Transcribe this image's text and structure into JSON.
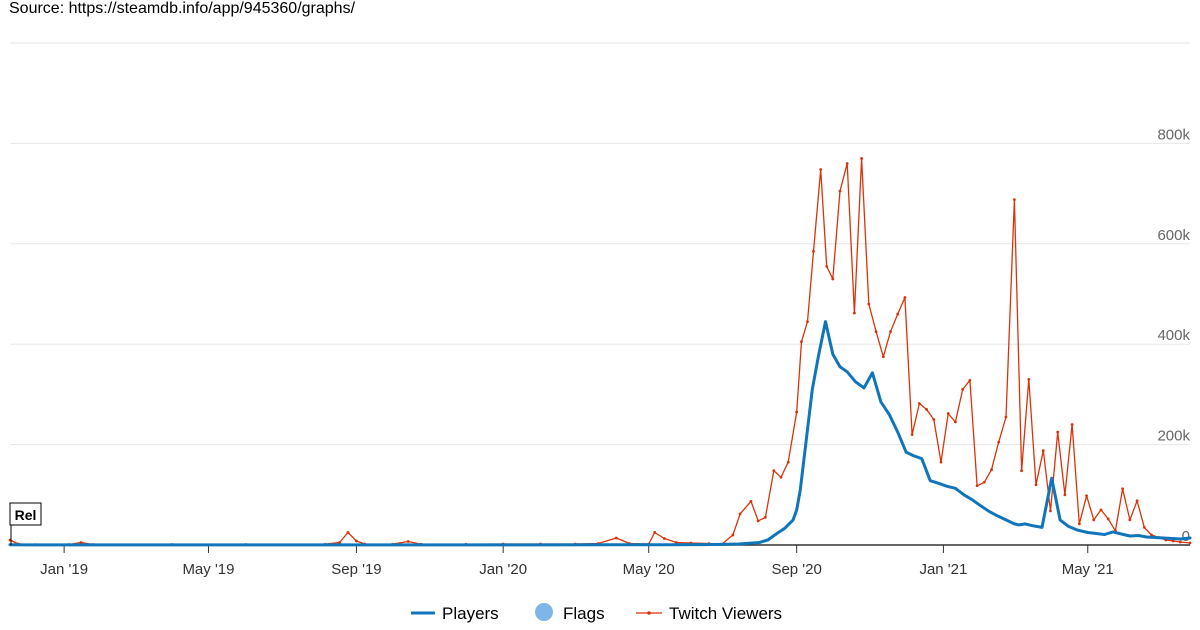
{
  "source_text": "Source: https://steamdb.info/app/945360/graphs/",
  "chart_data": {
    "type": "line",
    "x_axis": {
      "type": "datetime",
      "range": [
        "2018-11-17",
        "2021-07-25"
      ],
      "tick_labels": [
        {
          "label": "Jan '19",
          "date": "2019-01-01"
        },
        {
          "label": "May '19",
          "date": "2019-05-01"
        },
        {
          "label": "Sep '19",
          "date": "2019-09-01"
        },
        {
          "label": "Jan '20",
          "date": "2020-01-01"
        },
        {
          "label": "May '20",
          "date": "2020-05-01"
        },
        {
          "label": "Sep '20",
          "date": "2020-09-01"
        },
        {
          "label": "Jan '21",
          "date": "2021-01-01"
        },
        {
          "label": "May '21",
          "date": "2021-05-01"
        }
      ]
    },
    "y_axis": {
      "range": [
        0,
        1000000
      ],
      "position": "right",
      "grid": true,
      "tick_labels": [
        {
          "label": "0",
          "value": 0
        },
        {
          "label": "200k",
          "value": 200000
        },
        {
          "label": "400k",
          "value": 400000
        },
        {
          "label": "600k",
          "value": 600000
        },
        {
          "label": "800k",
          "value": 800000
        }
      ]
    },
    "legend": {
      "position": "bottom-center",
      "items": [
        {
          "label": "Players",
          "symbol": "line",
          "color": "#1075bb"
        },
        {
          "label": "Flags",
          "symbol": "circle",
          "color": "#7fb5e8"
        },
        {
          "label": "Twitch Viewers",
          "symbol": "line-marker",
          "color": "#d9330b"
        }
      ]
    },
    "flags": [
      {
        "label": "Rel",
        "date": "2018-11-17"
      }
    ],
    "series": [
      {
        "name": "Players",
        "color": "#1075bb",
        "points": [
          [
            "2018-11-17",
            500
          ],
          [
            "2018-12-01",
            200
          ],
          [
            "2019-02-01",
            150
          ],
          [
            "2019-04-01",
            150
          ],
          [
            "2019-06-01",
            150
          ],
          [
            "2019-08-01",
            150
          ],
          [
            "2019-10-01",
            150
          ],
          [
            "2019-12-01",
            150
          ],
          [
            "2020-02-01",
            200
          ],
          [
            "2020-04-01",
            300
          ],
          [
            "2020-05-15",
            500
          ],
          [
            "2020-06-15",
            800
          ],
          [
            "2020-07-01",
            1200
          ],
          [
            "2020-07-15",
            2000
          ],
          [
            "2020-08-01",
            5000
          ],
          [
            "2020-08-08",
            10000
          ],
          [
            "2020-08-15",
            22000
          ],
          [
            "2020-08-22",
            33000
          ],
          [
            "2020-08-29",
            50000
          ],
          [
            "2020-09-01",
            70000
          ],
          [
            "2020-09-04",
            110000
          ],
          [
            "2020-09-07",
            170000
          ],
          [
            "2020-09-11",
            250000
          ],
          [
            "2020-09-14",
            310000
          ],
          [
            "2020-09-19",
            375000
          ],
          [
            "2020-09-25",
            445000
          ],
          [
            "2020-10-01",
            380000
          ],
          [
            "2020-10-07",
            355000
          ],
          [
            "2020-10-13",
            345000
          ],
          [
            "2020-10-20",
            325000
          ],
          [
            "2020-10-27",
            313000
          ],
          [
            "2020-11-03",
            343000
          ],
          [
            "2020-11-10",
            285000
          ],
          [
            "2020-11-17",
            260000
          ],
          [
            "2020-11-24",
            225000
          ],
          [
            "2020-12-01",
            185000
          ],
          [
            "2020-12-07",
            178000
          ],
          [
            "2020-12-14",
            172000
          ],
          [
            "2020-12-21",
            128000
          ],
          [
            "2020-12-28",
            123000
          ],
          [
            "2021-01-04",
            117000
          ],
          [
            "2021-01-11",
            113000
          ],
          [
            "2021-01-18",
            100000
          ],
          [
            "2021-01-25",
            90000
          ],
          [
            "2021-02-01",
            78000
          ],
          [
            "2021-02-08",
            67000
          ],
          [
            "2021-02-15",
            58000
          ],
          [
            "2021-02-22",
            50000
          ],
          [
            "2021-03-01",
            42000
          ],
          [
            "2021-03-05",
            40000
          ],
          [
            "2021-03-10",
            42000
          ],
          [
            "2021-03-17",
            38000
          ],
          [
            "2021-03-24",
            35000
          ],
          [
            "2021-04-01",
            133000
          ],
          [
            "2021-04-08",
            50000
          ],
          [
            "2021-04-15",
            37000
          ],
          [
            "2021-04-22",
            30000
          ],
          [
            "2021-05-01",
            25000
          ],
          [
            "2021-05-08",
            23000
          ],
          [
            "2021-05-15",
            21000
          ],
          [
            "2021-05-22",
            26000
          ],
          [
            "2021-05-29",
            22000
          ],
          [
            "2021-06-05",
            18000
          ],
          [
            "2021-06-12",
            19000
          ],
          [
            "2021-06-19",
            16000
          ],
          [
            "2021-06-26",
            15000
          ],
          [
            "2021-07-03",
            14000
          ],
          [
            "2021-07-10",
            13000
          ],
          [
            "2021-07-17",
            12000
          ],
          [
            "2021-07-25",
            14000
          ]
        ]
      },
      {
        "name": "Twitch Viewers",
        "color": "#d9330b",
        "points": [
          [
            "2018-11-17",
            10000
          ],
          [
            "2018-11-24",
            2000
          ],
          [
            "2018-12-08",
            800
          ],
          [
            "2019-01-05",
            1000
          ],
          [
            "2019-01-15",
            5000
          ],
          [
            "2019-01-25",
            1000
          ],
          [
            "2019-04-01",
            1000
          ],
          [
            "2019-06-01",
            1000
          ],
          [
            "2019-08-06",
            1500
          ],
          [
            "2019-08-18",
            5000
          ],
          [
            "2019-08-25",
            25000
          ],
          [
            "2019-09-01",
            8000
          ],
          [
            "2019-09-08",
            2000
          ],
          [
            "2019-10-01",
            1500
          ],
          [
            "2019-10-14",
            7000
          ],
          [
            "2019-10-25",
            1500
          ],
          [
            "2019-12-01",
            1500
          ],
          [
            "2020-01-01",
            2000
          ],
          [
            "2020-02-01",
            2000
          ],
          [
            "2020-03-01",
            2000
          ],
          [
            "2020-03-20",
            3000
          ],
          [
            "2020-04-04",
            14000
          ],
          [
            "2020-04-15",
            3000
          ],
          [
            "2020-05-01",
            2000
          ],
          [
            "2020-05-06",
            25000
          ],
          [
            "2020-05-14",
            13000
          ],
          [
            "2020-05-24",
            5000
          ],
          [
            "2020-06-05",
            4000
          ],
          [
            "2020-06-20",
            3000
          ],
          [
            "2020-07-01",
            2000
          ],
          [
            "2020-07-10",
            20000
          ],
          [
            "2020-07-16",
            62000
          ],
          [
            "2020-07-25",
            87000
          ],
          [
            "2020-07-31",
            48000
          ],
          [
            "2020-08-06",
            55000
          ],
          [
            "2020-08-13",
            148000
          ],
          [
            "2020-08-19",
            135000
          ],
          [
            "2020-08-25",
            165000
          ],
          [
            "2020-09-01",
            265000
          ],
          [
            "2020-09-05",
            405000
          ],
          [
            "2020-09-10",
            445000
          ],
          [
            "2020-09-15",
            585000
          ],
          [
            "2020-09-21",
            748000
          ],
          [
            "2020-09-26",
            555000
          ],
          [
            "2020-10-01",
            530000
          ],
          [
            "2020-10-07",
            705000
          ],
          [
            "2020-10-13",
            760000
          ],
          [
            "2020-10-19",
            462000
          ],
          [
            "2020-10-25",
            770000
          ],
          [
            "2020-10-31",
            480000
          ],
          [
            "2020-11-06",
            425000
          ],
          [
            "2020-11-12",
            375000
          ],
          [
            "2020-11-18",
            425000
          ],
          [
            "2020-11-24",
            460000
          ],
          [
            "2020-11-30",
            493000
          ],
          [
            "2020-12-06",
            220000
          ],
          [
            "2020-12-12",
            282000
          ],
          [
            "2020-12-18",
            270000
          ],
          [
            "2020-12-24",
            250000
          ],
          [
            "2020-12-30",
            165000
          ],
          [
            "2021-01-05",
            262000
          ],
          [
            "2021-01-11",
            245000
          ],
          [
            "2021-01-17",
            310000
          ],
          [
            "2021-01-23",
            328000
          ],
          [
            "2021-01-29",
            118000
          ],
          [
            "2021-02-04",
            125000
          ],
          [
            "2021-02-10",
            150000
          ],
          [
            "2021-02-16",
            205000
          ],
          [
            "2021-02-22",
            255000
          ],
          [
            "2021-03-01",
            688000
          ],
          [
            "2021-03-07",
            148000
          ],
          [
            "2021-03-13",
            330000
          ],
          [
            "2021-03-19",
            120000
          ],
          [
            "2021-03-25",
            188000
          ],
          [
            "2021-03-31",
            68000
          ],
          [
            "2021-04-06",
            225000
          ],
          [
            "2021-04-12",
            100000
          ],
          [
            "2021-04-18",
            240000
          ],
          [
            "2021-04-24",
            42000
          ],
          [
            "2021-04-30",
            98000
          ],
          [
            "2021-05-06",
            50000
          ],
          [
            "2021-05-12",
            70000
          ],
          [
            "2021-05-18",
            52000
          ],
          [
            "2021-05-24",
            28000
          ],
          [
            "2021-05-30",
            112000
          ],
          [
            "2021-06-05",
            50000
          ],
          [
            "2021-06-11",
            88000
          ],
          [
            "2021-06-17",
            35000
          ],
          [
            "2021-06-23",
            20000
          ],
          [
            "2021-06-29",
            15000
          ],
          [
            "2021-07-05",
            10000
          ],
          [
            "2021-07-11",
            8000
          ],
          [
            "2021-07-17",
            6000
          ],
          [
            "2021-07-25",
            4000
          ]
        ]
      }
    ]
  }
}
